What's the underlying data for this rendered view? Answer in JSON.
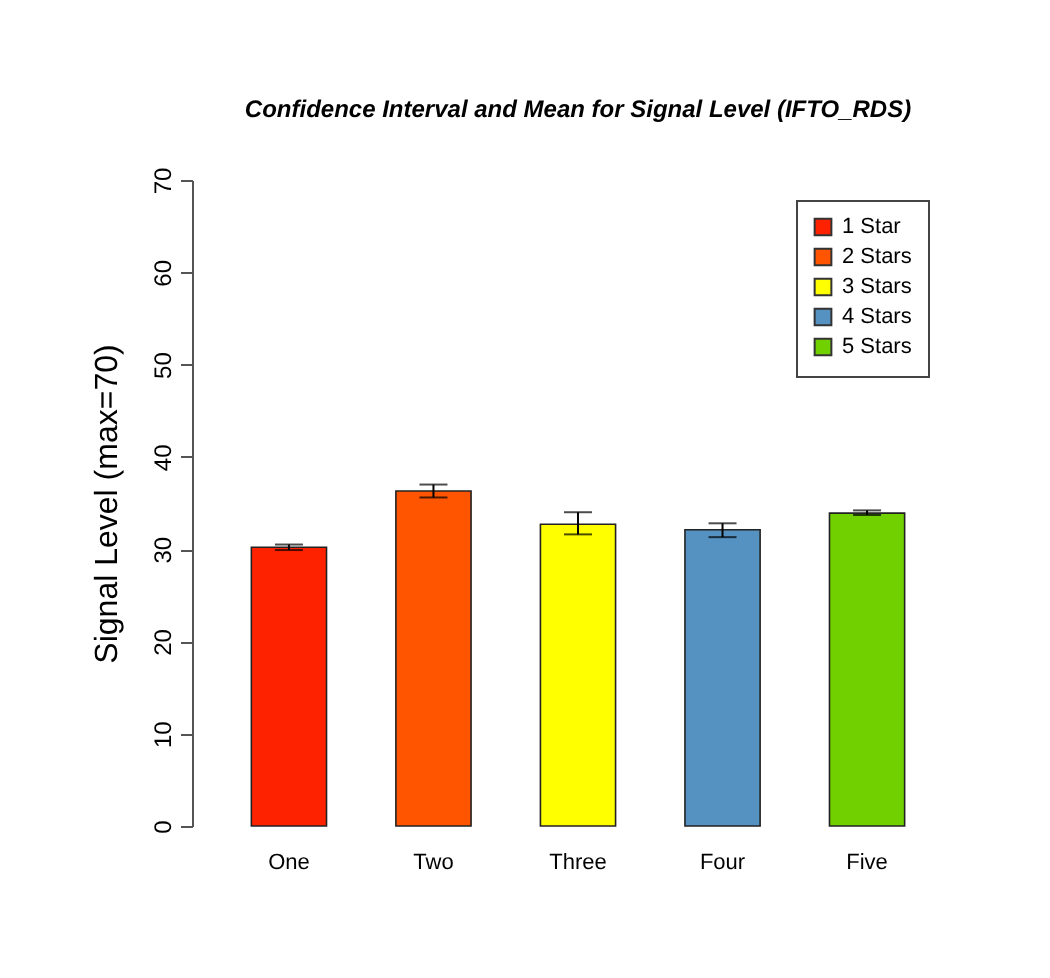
{
  "chart_data": {
    "type": "bar",
    "title": "Confidence Interval and Mean for Signal Level (IFTO_RDS)",
    "ylabel": "Signal Level (max=70)",
    "categories": [
      "One",
      "Two",
      "Three",
      "Four",
      "Five"
    ],
    "series": [
      {
        "name": "1 Star",
        "color": "#ff2200",
        "values": [
          30.2,
          null,
          null,
          null,
          null
        ],
        "errors": [
          [
            29.9,
            30.5
          ],
          null,
          null,
          null,
          null
        ]
      },
      {
        "name": "2 Stars",
        "color": "#ff5500",
        "values": [
          null,
          36.3,
          null,
          null,
          null
        ],
        "errors": [
          null,
          [
            35.6,
            37.0
          ],
          null,
          null,
          null
        ]
      },
      {
        "name": "3 Stars",
        "color": "#ffff00",
        "values": [
          null,
          null,
          32.7,
          null,
          null
        ],
        "errors": [
          null,
          null,
          [
            31.6,
            34.0
          ],
          null,
          null
        ]
      },
      {
        "name": "4 Stars",
        "color": "#5592c1",
        "values": [
          null,
          null,
          null,
          32.1,
          null
        ],
        "errors": [
          null,
          null,
          null,
          [
            31.3,
            32.8
          ],
          null
        ]
      },
      {
        "name": "5 Stars",
        "color": "#70d000",
        "values": [
          null,
          null,
          null,
          null,
          33.9
        ],
        "errors": [
          null,
          null,
          null,
          null,
          [
            33.7,
            34.2
          ]
        ]
      }
    ],
    "ylim": [
      0,
      70
    ],
    "yticks": [
      0,
      10,
      20,
      30,
      40,
      50,
      60,
      70
    ],
    "grid": false,
    "legend": "top right"
  }
}
